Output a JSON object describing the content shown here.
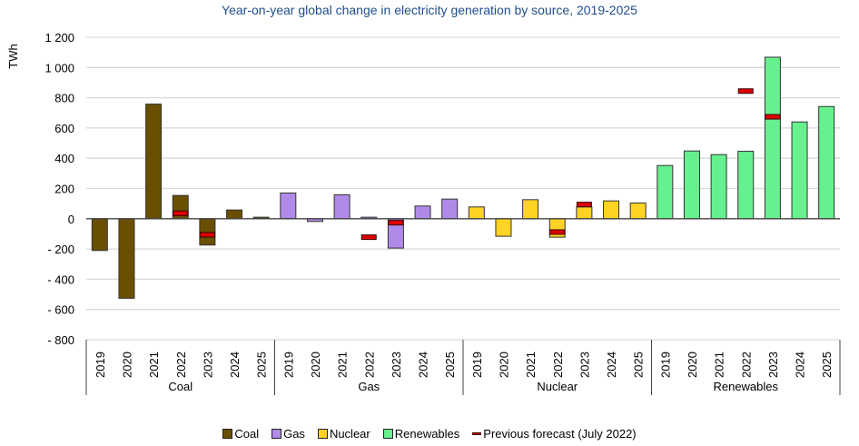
{
  "chart_data": {
    "type": "bar",
    "title": "Year-on-year global change in electricity generation by source, 2019-2025",
    "xlabel": "",
    "ylabel": "TWh",
    "ylim": [
      -800,
      1200
    ],
    "yticks": [
      1200,
      1000,
      800,
      600,
      400,
      200,
      0,
      -200,
      -400,
      -600,
      -800
    ],
    "ytick_labels": [
      "1 200",
      "1 000",
      "800",
      "600",
      "400",
      "200",
      "0",
      "- 200",
      "- 400",
      "- 600",
      "- 800"
    ],
    "grid": true,
    "legend_position": "bottom",
    "years": [
      "2019",
      "2020",
      "2021",
      "2022",
      "2023",
      "2024",
      "2025"
    ],
    "groups": [
      {
        "name": "Coal",
        "color": "#6b4f00",
        "values": [
          -210,
          -526,
          758,
          154,
          -174,
          58,
          10
        ],
        "previous_forecast": [
          null,
          null,
          null,
          36,
          -106,
          null,
          null
        ]
      },
      {
        "name": "Gas",
        "color": "#b08ae8",
        "values": [
          170,
          -18,
          158,
          10,
          -194,
          84,
          130
        ],
        "previous_forecast": [
          null,
          null,
          null,
          -122,
          -26,
          null,
          null
        ]
      },
      {
        "name": "Nuclear",
        "color": "#ffd324",
        "values": [
          78,
          -116,
          126,
          -122,
          78,
          118,
          104
        ],
        "previous_forecast": [
          null,
          null,
          null,
          -88,
          94,
          null,
          null
        ]
      },
      {
        "name": "Renewables",
        "color": "#66f08e",
        "values": [
          352,
          448,
          424,
          446,
          1068,
          640,
          742
        ],
        "previous_forecast": [
          null,
          null,
          null,
          844,
          674,
          null,
          null
        ]
      }
    ],
    "legend": [
      {
        "label": "Coal",
        "color": "#6b4f00",
        "kind": "box"
      },
      {
        "label": "Gas",
        "color": "#b08ae8",
        "kind": "box"
      },
      {
        "label": "Nuclear",
        "color": "#ffd324",
        "kind": "box"
      },
      {
        "label": "Renewables",
        "color": "#66f08e",
        "kind": "box"
      },
      {
        "label": "Previous forecast (July 2022)",
        "color": "#c00000",
        "kind": "dash"
      }
    ]
  }
}
